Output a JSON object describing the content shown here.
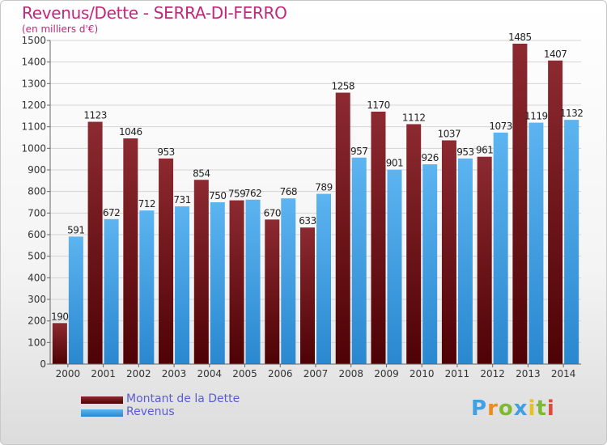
{
  "header": {
    "title": "Revenus/Dette - SERRA-DI-FERRO",
    "subtitle": "(en milliers d'€)"
  },
  "colors": {
    "dette": "#7a1014",
    "revenus": "#3fa0e6",
    "title": "#c0287a",
    "legend_text": "#5b5bd6"
  },
  "legend": {
    "dette_label": "Montant de la Dette",
    "revenus_label": "Revenus"
  },
  "logo": {
    "text": "Proxiti"
  },
  "chart_data": {
    "type": "bar",
    "categories": [
      "2000",
      "2001",
      "2002",
      "2003",
      "2004",
      "2005",
      "2006",
      "2007",
      "2008",
      "2009",
      "2010",
      "2011",
      "2012",
      "2013",
      "2014"
    ],
    "series": [
      {
        "name": "Montant de la Dette",
        "values": [
          190,
          1123,
          1046,
          953,
          854,
          759,
          670,
          633,
          1258,
          1170,
          1112,
          1037,
          961,
          1485,
          1407
        ]
      },
      {
        "name": "Revenus",
        "values": [
          591,
          672,
          712,
          731,
          750,
          762,
          768,
          789,
          957,
          901,
          926,
          953,
          1073,
          1119,
          1132
        ]
      }
    ],
    "ylim": [
      0,
      1500
    ],
    "yticks": [
      0,
      100,
      200,
      300,
      400,
      500,
      600,
      700,
      800,
      900,
      1000,
      1100,
      1200,
      1300,
      1400,
      1500
    ],
    "grid": true,
    "legend_position": "bottom-left"
  }
}
